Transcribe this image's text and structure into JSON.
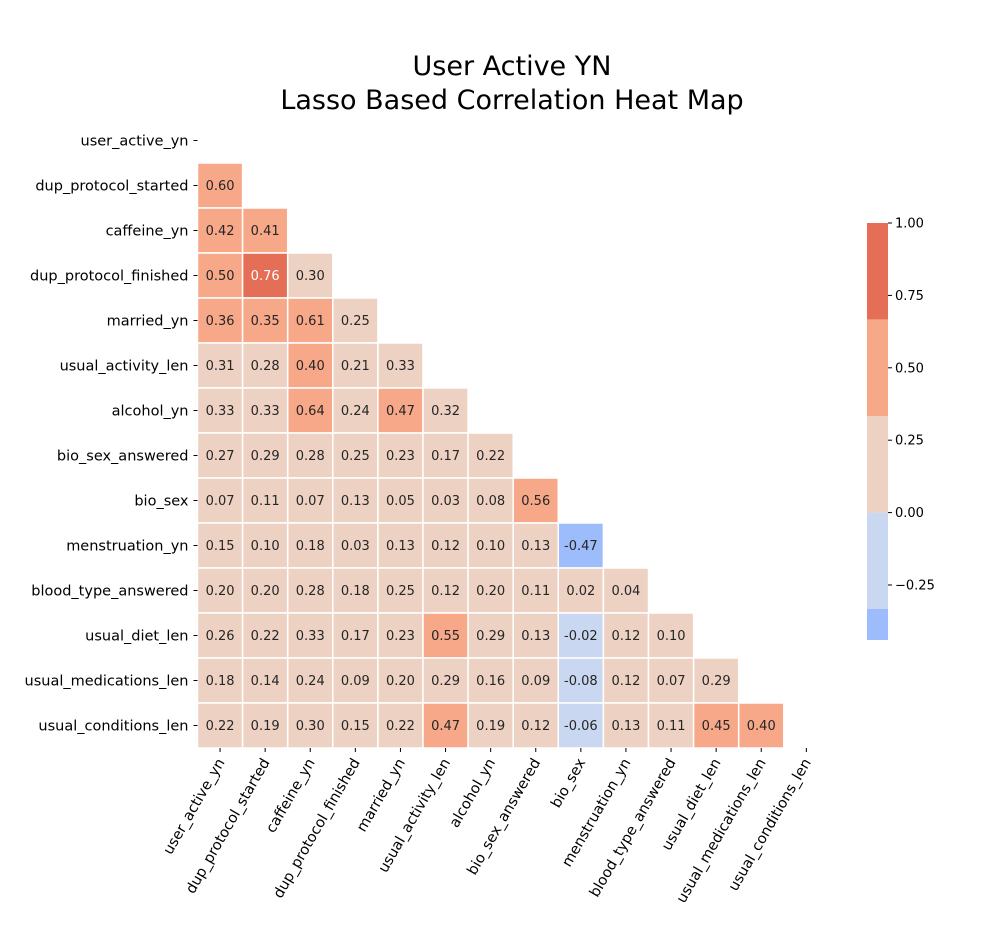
{
  "chart_data": {
    "type": "heatmap",
    "title_lines": [
      "User Active YN",
      "Lasso Based Correlation Heat Map"
    ],
    "labels": [
      "user_active_yn",
      "dup_protocol_started",
      "caffeine_yn",
      "dup_protocol_finished",
      "married_yn",
      "usual_activity_len",
      "alcohol_yn",
      "bio_sex_answered",
      "bio_sex",
      "menstruation_yn",
      "blood_type_answered",
      "usual_diet_len",
      "usual_medications_len",
      "usual_conditions_len"
    ],
    "mask": "upper triangle including diagonal",
    "values": [
      [],
      [
        "0.60"
      ],
      [
        "0.42",
        "0.41"
      ],
      [
        "0.50",
        "0.76",
        "0.30"
      ],
      [
        "0.36",
        "0.35",
        "0.61",
        "0.25"
      ],
      [
        "0.31",
        "0.28",
        "0.40",
        "0.21",
        "0.33"
      ],
      [
        "0.33",
        "0.33",
        "0.64",
        "0.24",
        "0.47",
        "0.32"
      ],
      [
        "0.27",
        "0.29",
        "0.28",
        "0.25",
        "0.23",
        "0.17",
        "0.22"
      ],
      [
        "0.07",
        "0.11",
        "0.07",
        "0.13",
        "0.05",
        "0.03",
        "0.08",
        "0.56"
      ],
      [
        "0.15",
        "0.10",
        "0.18",
        "0.03",
        "0.13",
        "0.12",
        "0.10",
        "0.13",
        "-0.47"
      ],
      [
        "0.20",
        "0.20",
        "0.28",
        "0.18",
        "0.25",
        "0.12",
        "0.20",
        "0.11",
        "0.02",
        "0.04"
      ],
      [
        "0.26",
        "0.22",
        "0.33",
        "0.17",
        "0.23",
        "0.55",
        "0.29",
        "0.13",
        "-0.02",
        "0.12",
        "0.10"
      ],
      [
        "0.18",
        "0.14",
        "0.24",
        "0.09",
        "0.20",
        "0.29",
        "0.16",
        "0.09",
        "-0.08",
        "0.12",
        "0.07",
        "0.29"
      ],
      [
        "0.22",
        "0.19",
        "0.30",
        "0.15",
        "0.22",
        "0.47",
        "0.19",
        "0.12",
        "-0.06",
        "0.13",
        "0.11",
        "0.45",
        "0.40"
      ]
    ],
    "colorbar": {
      "vmin": -0.44,
      "vmax": 1.0,
      "ticks": [
        "1.00",
        "0.75",
        "0.50",
        "0.25",
        "0.00",
        "−0.25"
      ],
      "tick_values": [
        1.0,
        0.75,
        0.5,
        0.25,
        0.0,
        -0.25
      ],
      "bins": [
        {
          "from": -0.5,
          "to": -0.333,
          "color": "#9dbcfb"
        },
        {
          "from": -0.333,
          "to": 0.0,
          "color": "#c9d7f0"
        },
        {
          "from": 0.0,
          "to": 0.333,
          "color": "#edd1c2"
        },
        {
          "from": 0.333,
          "to": 0.667,
          "color": "#f7a889"
        },
        {
          "from": 0.667,
          "to": 1.0,
          "color": "#e46e56"
        }
      ]
    },
    "grid": false,
    "legend": "colorbar right"
  }
}
